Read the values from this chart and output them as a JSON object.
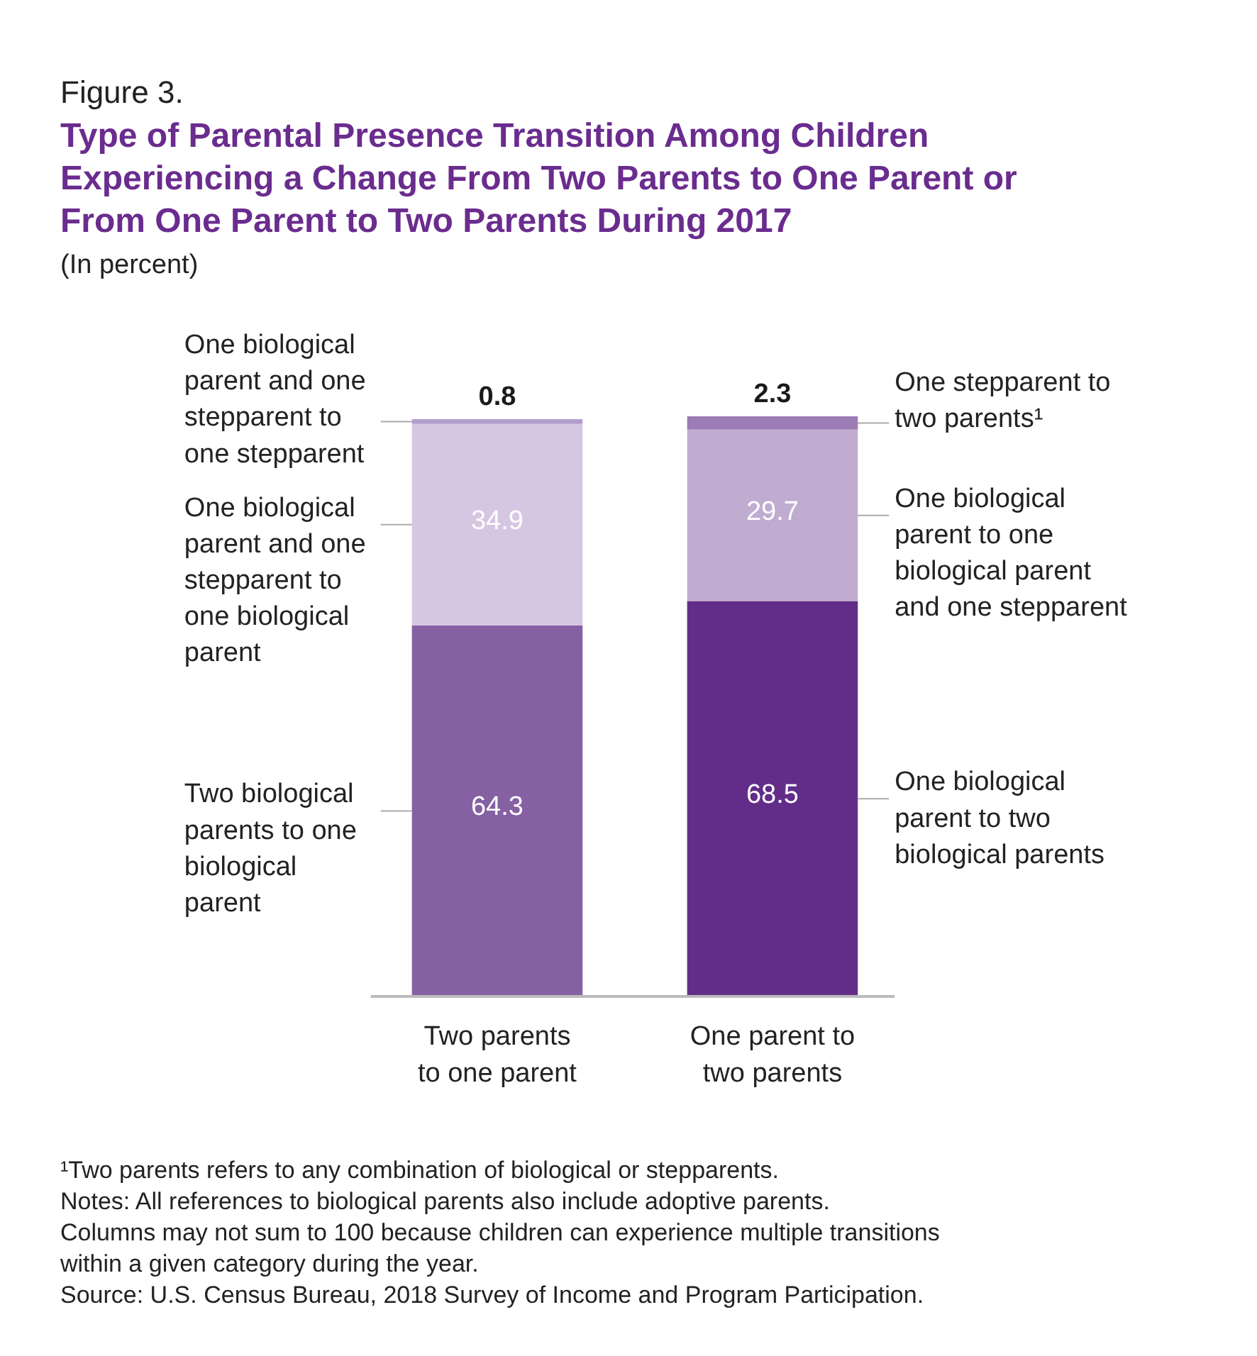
{
  "chart_data": {
    "type": "bar",
    "stacked": true,
    "data_labels": true,
    "title": "Type of Parental Presence Transition Among Children Experiencing a Change From Two Parents to One Parent or From One Parent to Two Parents During 2017",
    "subtitle": "(In percent)",
    "categories": [
      "Two parents to one parent",
      "One parent to two parents"
    ],
    "series": [
      {
        "name": "Two biological parents to one biological parent",
        "color": "#8560a3",
        "values": [
          64.3,
          null
        ]
      },
      {
        "name": "One biological parent and one stepparent to one biological parent",
        "color": "#d5c7e1",
        "values": [
          34.9,
          null
        ]
      },
      {
        "name": "One biological parent and one stepparent to one stepparent",
        "color": "#b39dcf",
        "values": [
          0.8,
          null
        ]
      },
      {
        "name": "One biological parent to two biological parents",
        "color": "#622d89",
        "values": [
          null,
          68.5
        ]
      },
      {
        "name": "One biological parent to one biological parent and one stepparent",
        "color": "#c0acd0",
        "values": [
          null,
          29.7
        ]
      },
      {
        "name": "One stepparent to two parents¹",
        "color": "#9b7cb5",
        "values": [
          null,
          2.3
        ]
      }
    ],
    "annotations": [
      "Figure 3.",
      "¹Two parents refers to any combination of biological or stepparents.",
      "Notes: All references to biological parents also include adoptive parents.",
      "Columns may not sum to 100 because children can experience multiple transitions within a given category during the year.",
      "Source: U.S. Census Bureau, 2018 Survey of Income and Program Participation."
    ]
  }
}
